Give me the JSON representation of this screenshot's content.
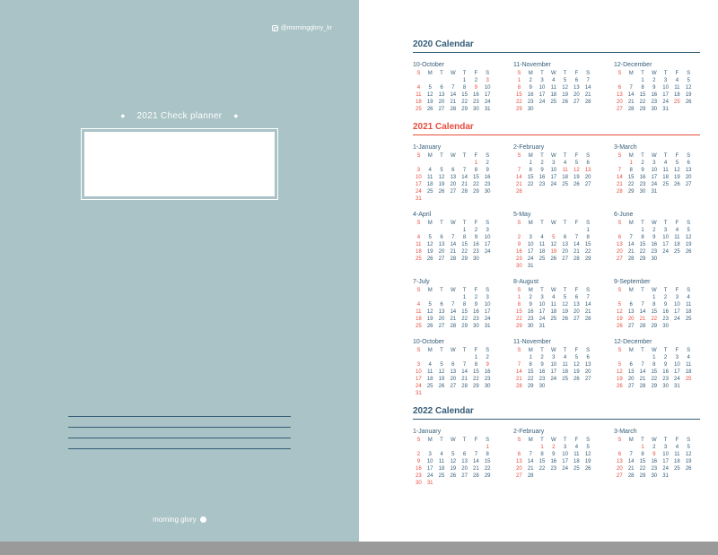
{
  "cover": {
    "handle": "@morningglory_kr",
    "title": "2021 Check planner",
    "brand": "morning glory"
  },
  "colors": {
    "left_bg": "#a9c3c6",
    "blue": "#355d78",
    "red": "#e84c3d"
  },
  "dow": [
    "S",
    "M",
    "T",
    "W",
    "T",
    "F",
    "S"
  ],
  "sections": [
    {
      "title": "2020 Calendar",
      "title_color": "blue",
      "rule_color": "blue",
      "rows": [
        [
          {
            "name": "10-October",
            "start": 4,
            "days": 31,
            "holidays": [
              3,
              9
            ]
          },
          {
            "name": "11-November",
            "start": 0,
            "days": 30,
            "holidays": []
          },
          {
            "name": "12-December",
            "start": 2,
            "days": 31,
            "holidays": [
              25
            ]
          }
        ]
      ]
    },
    {
      "title": "2021 Calendar",
      "title_color": "red",
      "rule_color": "red",
      "rows": [
        [
          {
            "name": "1-January",
            "start": 5,
            "days": 31,
            "holidays": [
              1
            ]
          },
          {
            "name": "2-February",
            "start": 1,
            "days": 28,
            "holidays": [
              11,
              12,
              13
            ]
          },
          {
            "name": "3-March",
            "start": 1,
            "days": 31,
            "holidays": [
              1
            ]
          }
        ],
        [
          {
            "name": "4-April",
            "start": 4,
            "days": 30,
            "holidays": []
          },
          {
            "name": "5-May",
            "start": 6,
            "days": 31,
            "holidays": [
              5,
              19
            ]
          },
          {
            "name": "6-June",
            "start": 2,
            "days": 30,
            "holidays": [
              6
            ]
          }
        ],
        [
          {
            "name": "7-July",
            "start": 4,
            "days": 31,
            "holidays": []
          },
          {
            "name": "8-August",
            "start": 0,
            "days": 31,
            "holidays": [
              15
            ]
          },
          {
            "name": "9-September",
            "start": 3,
            "days": 30,
            "holidays": [
              20,
              21,
              22
            ]
          }
        ],
        [
          {
            "name": "10-October",
            "start": 5,
            "days": 31,
            "holidays": [
              3,
              9
            ]
          },
          {
            "name": "11-November",
            "start": 1,
            "days": 30,
            "holidays": []
          },
          {
            "name": "12-December",
            "start": 3,
            "days": 31,
            "holidays": [
              25
            ]
          }
        ]
      ]
    },
    {
      "title": "2022 Calendar",
      "title_color": "blue",
      "rule_color": "blue",
      "rows": [
        [
          {
            "name": "1-January",
            "start": 6,
            "days": 31,
            "holidays": [
              1,
              31
            ]
          },
          {
            "name": "2-February",
            "start": 2,
            "days": 28,
            "holidays": [
              1,
              2
            ]
          },
          {
            "name": "3-March",
            "start": 2,
            "days": 31,
            "holidays": [
              1,
              9
            ]
          }
        ]
      ]
    }
  ]
}
